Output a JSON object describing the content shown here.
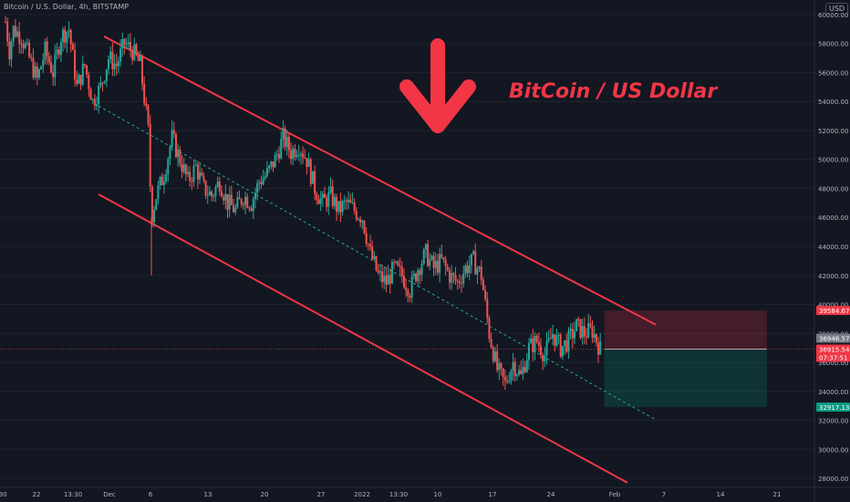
{
  "legend_text": "Bitcoin / U.S. Dollar, 4h, BITSTAMP",
  "currency": "USD",
  "annotation": "BitCoin / US Dollar",
  "colors": {
    "background": "#131722",
    "up": "#26a69a",
    "down": "#ef5350",
    "channel": "#f23645",
    "midline": "#26a69a",
    "axis_text": "#b2b5be",
    "price_line": "#ef5350",
    "stop_zone": "#f23645",
    "target_zone": "#089981"
  },
  "chart_data": {
    "type": "candlestick",
    "symbol": "BTCUSD",
    "timeframe": "4h",
    "exchange": "BITSTAMP",
    "ylim": [
      27500,
      60500
    ],
    "yticks": [
      "28000.00",
      "30000.00",
      "32000.00",
      "34000.00",
      "36000.00",
      "38000.00",
      "40000.00",
      "42000.00",
      "44000.00",
      "46000.00",
      "48000.00",
      "50000.00",
      "52000.00",
      "54000.00",
      "56000.00",
      "58000.00",
      "60000.00"
    ],
    "xticks": [
      ":30",
      "22",
      "13:30",
      "Dec",
      "6",
      "13",
      "20",
      "27",
      "2022",
      "13:30",
      "10",
      "17",
      "24",
      "Feb",
      "7",
      "14",
      "21"
    ],
    "price_path": [
      [
        0,
        59500
      ],
      [
        0.5,
        57500
      ],
      [
        1,
        59000
      ],
      [
        2,
        58500
      ],
      [
        3,
        57000
      ],
      [
        4,
        55500
      ],
      [
        5,
        57500
      ],
      [
        6,
        56000
      ],
      [
        7,
        58500
      ],
      [
        8,
        59000
      ],
      [
        9,
        55000
      ],
      [
        10,
        56500
      ],
      [
        11,
        54000
      ],
      [
        12,
        55000
      ],
      [
        13,
        57000
      ],
      [
        14,
        56500
      ],
      [
        15,
        58000
      ],
      [
        16,
        57500
      ],
      [
        17,
        56500
      ],
      [
        18,
        52000
      ],
      [
        18.4,
        46000
      ],
      [
        19,
        47500
      ],
      [
        20,
        49000
      ],
      [
        21,
        51500
      ],
      [
        22,
        50000
      ],
      [
        23,
        48500
      ],
      [
        24,
        49500
      ],
      [
        25,
        48000
      ],
      [
        26,
        47500
      ],
      [
        27,
        48500
      ],
      [
        28,
        47000
      ],
      [
        29,
        46500
      ],
      [
        30,
        47500
      ],
      [
        31,
        47000
      ],
      [
        32,
        48500
      ],
      [
        33,
        49000
      ],
      [
        34,
        50000
      ],
      [
        35,
        51500
      ],
      [
        36,
        50500
      ],
      [
        37,
        51000
      ],
      [
        38,
        50000
      ],
      [
        39,
        48000
      ],
      [
        40,
        47000
      ],
      [
        41,
        47500
      ],
      [
        42,
        46500
      ],
      [
        43,
        47000
      ],
      [
        44,
        46500
      ],
      [
        45,
        46000
      ],
      [
        46,
        43500
      ],
      [
        47,
        42000
      ],
      [
        48,
        41500
      ],
      [
        49,
        42500
      ],
      [
        50,
        42000
      ],
      [
        51,
        41000
      ],
      [
        52,
        42500
      ],
      [
        53,
        43500
      ],
      [
        54,
        42500
      ],
      [
        55,
        43000
      ],
      [
        56,
        42000
      ],
      [
        57,
        41500
      ],
      [
        58,
        42500
      ],
      [
        59,
        43000
      ],
      [
        60,
        42000
      ],
      [
        61,
        38000
      ],
      [
        62,
        35500
      ],
      [
        63,
        34500
      ],
      [
        64,
        36000
      ],
      [
        65,
        35000
      ],
      [
        66,
        37000
      ],
      [
        67,
        37500
      ],
      [
        68,
        36500
      ],
      [
        69,
        38000
      ],
      [
        70,
        37000
      ],
      [
        71,
        37500
      ],
      [
        72,
        38500
      ],
      [
        73,
        38000
      ],
      [
        74,
        38200
      ],
      [
        75,
        36900
      ]
    ],
    "wick_spikes": [
      {
        "t": 18.4,
        "low": 42000
      }
    ],
    "last_price": 36915.54,
    "price_labels": {
      "stop": "39584.67",
      "current_hi": "36946.57",
      "current": "36915.54",
      "countdown": "07:37:51",
      "target": "32917.13"
    },
    "channel": {
      "upper": [
        [
          0,
          59000
        ],
        [
          102,
          38500
        ]
      ],
      "lower": [
        [
          0,
          47700
        ],
        [
          102,
          27700
        ]
      ],
      "mid": [
        [
          0,
          53400
        ],
        [
          102,
          33400
        ]
      ]
    },
    "position": {
      "entry": 36915.54,
      "stop": 39584.67,
      "target": 32917.13
    }
  }
}
